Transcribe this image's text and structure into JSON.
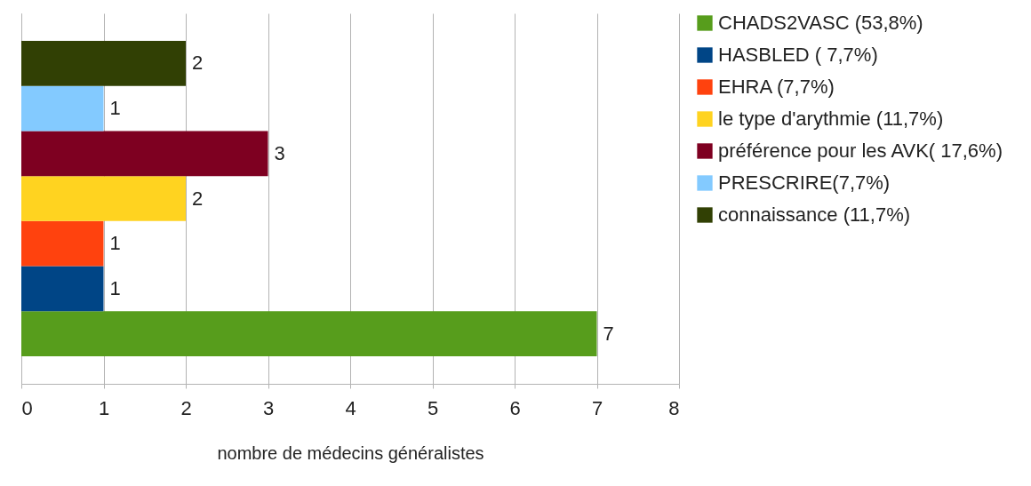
{
  "chart_data": {
    "type": "bar",
    "orientation": "horizontal",
    "xlabel": "nombre de médecins généralistes",
    "categories": [
      null
    ],
    "series": [
      {
        "name": "CHADS2VASC (53,8%)",
        "color": "#579d1c",
        "values": [
          7
        ]
      },
      {
        "name": "HASBLED ( 7,7%)",
        "color": "#004586",
        "values": [
          1
        ]
      },
      {
        "name": "EHRA (7,7%)",
        "color": "#ff420e",
        "values": [
          1
        ]
      },
      {
        "name": "le type d'arythmie (11,7%)",
        "color": "#ffd320",
        "values": [
          2
        ]
      },
      {
        "name": "préférence pour les AVK( 17,6%)",
        "color": "#7e0021",
        "values": [
          3
        ]
      },
      {
        "name": "PRESCRIRE(7,7%)",
        "color": "#83caff",
        "values": [
          1
        ]
      },
      {
        "name": "connaissance (11,7%)",
        "color": "#314004",
        "values": [
          2
        ]
      }
    ],
    "xlim": [
      0,
      8
    ],
    "xticks": [
      0,
      1,
      2,
      3,
      4,
      5,
      6,
      7,
      8
    ],
    "grid": "x",
    "legend": "right",
    "data_labels": true
  }
}
